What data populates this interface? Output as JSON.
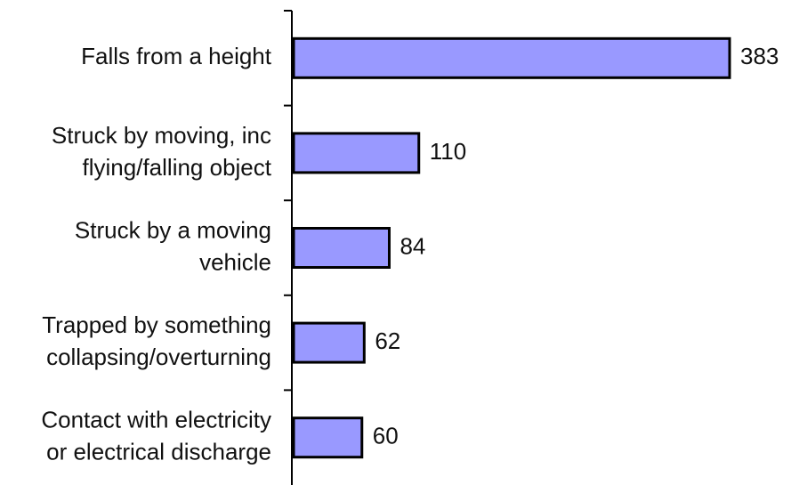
{
  "chart_data": {
    "type": "bar",
    "orientation": "horizontal",
    "categories": [
      "Falls from a height",
      "Struck by moving, inc\nflying/falling object",
      "Struck by a moving\nvehicle",
      "Trapped by something\ncollapsing/overturning",
      "Contact with electricity\nor electrical discharge"
    ],
    "values": [
      383,
      110,
      84,
      62,
      60
    ],
    "color": "#9999ff"
  }
}
